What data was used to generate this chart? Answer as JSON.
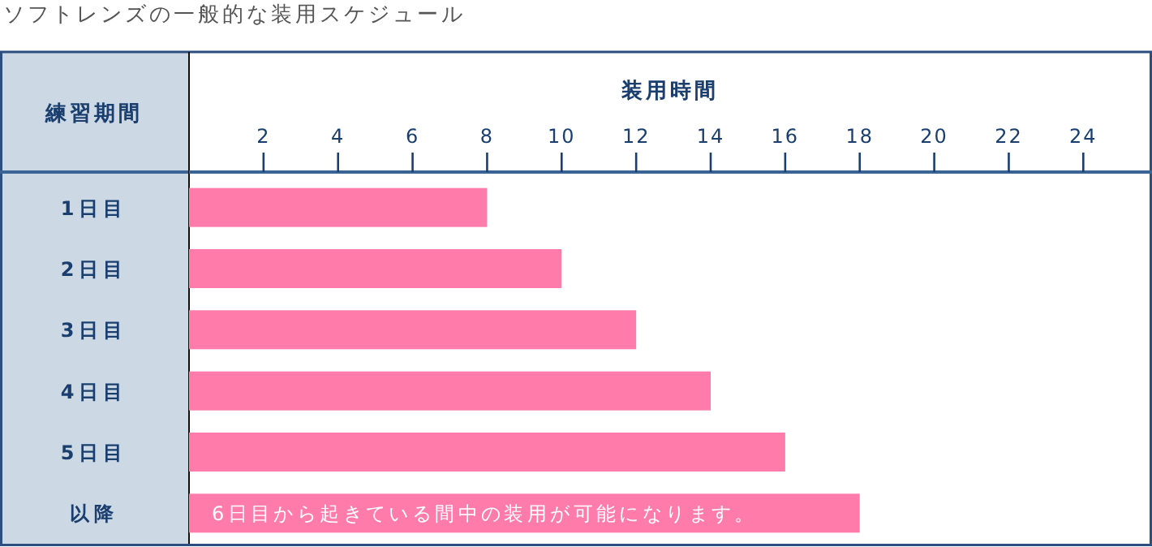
{
  "chart_data": {
    "type": "bar",
    "orientation": "horizontal",
    "title": "ソフトレンズの一般的な装用スケジュール",
    "xlabel": "装用時間",
    "ylabel": "練習期間",
    "categories": [
      "1日目",
      "2日目",
      "3日目",
      "4日目",
      "5日目",
      "以降"
    ],
    "values": [
      8,
      10,
      12,
      14,
      16,
      18
    ],
    "color": "#ff7baa",
    "xlim": [
      0,
      25.8
    ],
    "xticks": [
      2,
      4,
      6,
      8,
      10,
      12,
      14,
      16,
      18,
      20,
      22,
      24
    ],
    "annotations": [
      "6日目から起きている間中の装用が可能になります。"
    ]
  }
}
